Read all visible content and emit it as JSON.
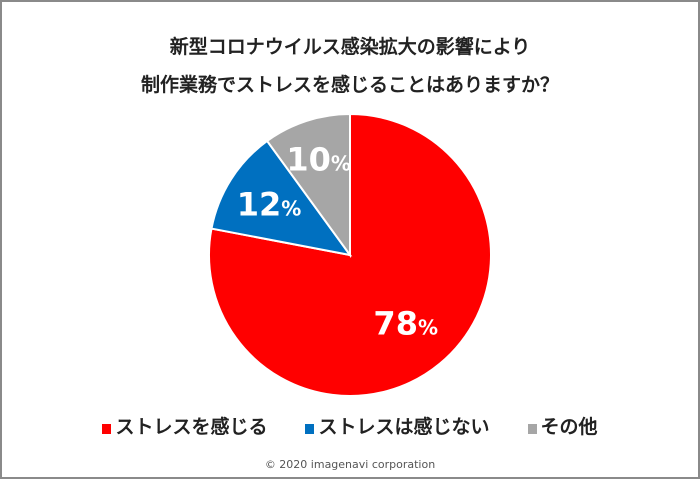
{
  "chart_data": {
    "type": "pie",
    "title": [
      "新型コロナウイルス感染拡大の影響により",
      "制作業務でストレスを感じることはありますか？"
    ],
    "slices": [
      {
        "name": "ストレスを感じる",
        "value": 78,
        "label": "78",
        "color": "#ff0000"
      },
      {
        "name": "ストレスは感じない",
        "value": 12,
        "label": "12",
        "color": "#0070c0"
      },
      {
        "name": "その他",
        "value": 10,
        "label": "10",
        "color": "#a6a6a6"
      }
    ],
    "unit": "%",
    "start": "top",
    "direction": "clockwise",
    "legend_placement": "bottom"
  },
  "footer": "© 2020 imagenavi corporation"
}
